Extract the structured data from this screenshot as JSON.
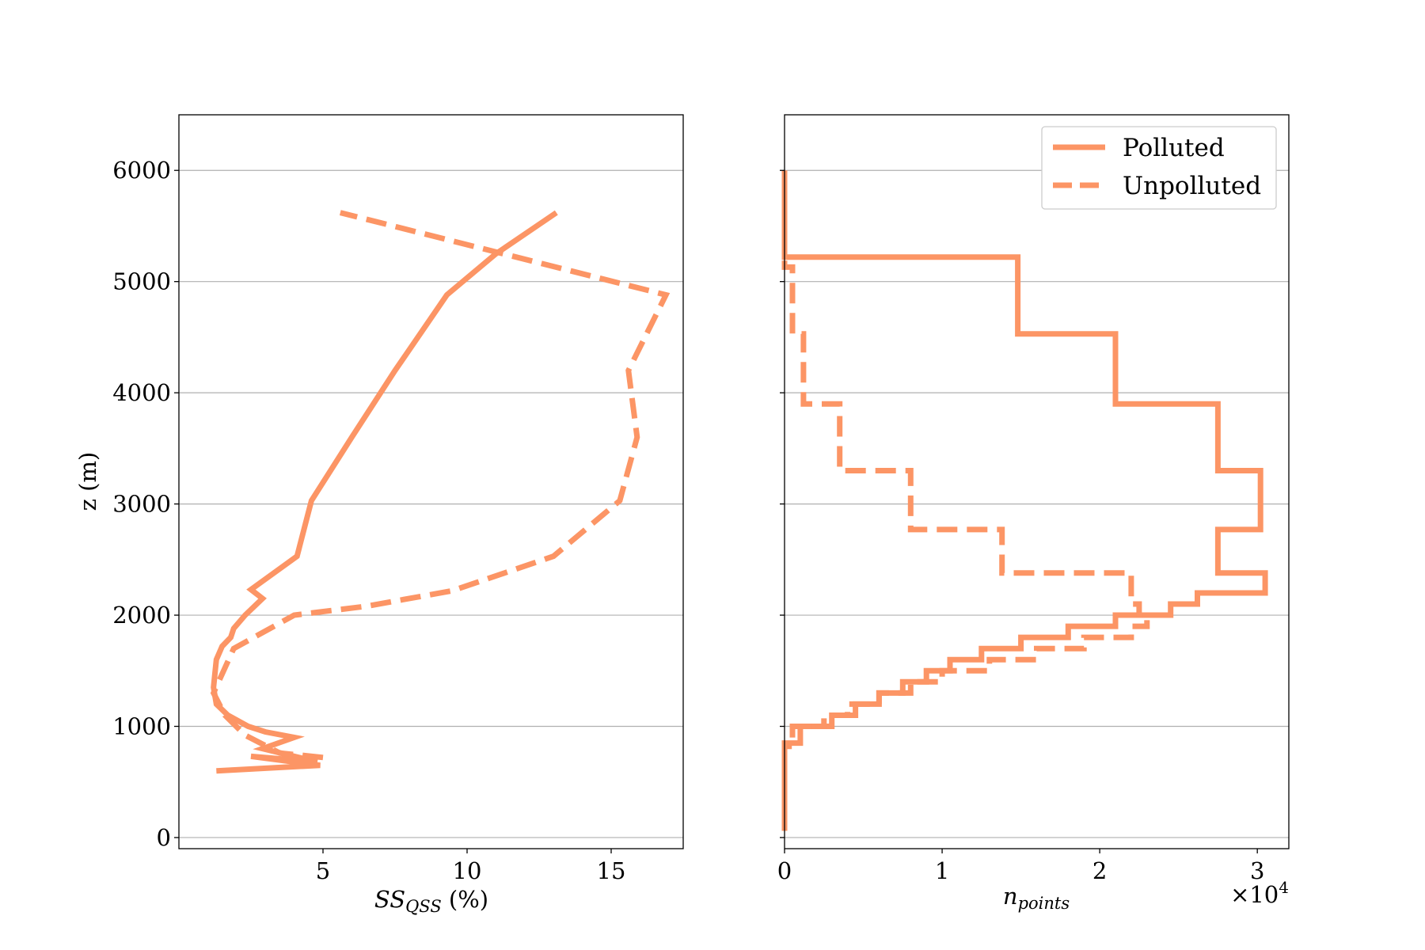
{
  "chart_data": [
    {
      "type": "line",
      "xlabel_main": "SS",
      "xlabel_sub": "QSS",
      "xlabel_suffix": " (%)",
      "ylabel": "z (m)",
      "xlim": [
        0,
        17.5
      ],
      "ylim": [
        -100,
        6500
      ],
      "xticks": [
        5,
        10,
        15
      ],
      "xtick_labels": [
        "5",
        "10",
        "15"
      ],
      "yticks": [
        0,
        1000,
        2000,
        3000,
        4000,
        5000,
        6000
      ],
      "ytick_labels": [
        "0",
        "1000",
        "2000",
        "3000",
        "4000",
        "5000",
        "6000"
      ],
      "grid": "horizontal",
      "series": [
        {
          "name": "Polluted",
          "style": "solid",
          "color": "#FC9565",
          "x": [
            1.3,
            4.9,
            2.5,
            4.8,
            2.9,
            4.0,
            3.0,
            2.4,
            1.7,
            1.3,
            1.2,
            1.3,
            1.5,
            1.8,
            1.9,
            2.3,
            2.9,
            2.5,
            4.1,
            4.6,
            6.0,
            7.5,
            9.3,
            11.0,
            13.1
          ],
          "y": [
            600,
            650,
            730,
            680,
            800,
            900,
            950,
            1000,
            1100,
            1200,
            1350,
            1600,
            1720,
            1800,
            1880,
            2000,
            2150,
            2230,
            2530,
            3030,
            3600,
            4200,
            4880,
            5250,
            5620
          ]
        },
        {
          "name": "Unpolluted",
          "style": "dashed",
          "color": "#FC9565",
          "x": [
            5.0,
            3.5,
            2.3,
            1.6,
            1.2,
            1.9,
            4.0,
            6.5,
            9.5,
            13.0,
            15.3,
            15.9,
            15.6,
            16.9,
            5.6
          ],
          "y": [
            720,
            760,
            920,
            1100,
            1300,
            1700,
            2000,
            2080,
            2220,
            2530,
            3030,
            3600,
            4200,
            4880,
            5620
          ]
        }
      ]
    },
    {
      "type": "histogram",
      "orientation": "horizontal",
      "xlabel_main": "n",
      "xlabel_sub": "points",
      "offset_text_base": "×10",
      "offset_text_exp": "4",
      "xlim": [
        0,
        3.2
      ],
      "ylim": [
        -100,
        6500
      ],
      "xticks": [
        0,
        1,
        2,
        3
      ],
      "xtick_labels": [
        "0",
        "1",
        "2",
        "3"
      ],
      "grid": "horizontal",
      "legend": {
        "placement": "top-right",
        "entries": [
          "Polluted",
          "Unpolluted"
        ]
      },
      "series": [
        {
          "name": "Polluted",
          "style": "solid",
          "color": "#FC9565",
          "bins": [
            [
              60,
              850,
              0.0
            ],
            [
              850,
              1000,
              0.1
            ],
            [
              1000,
              1100,
              0.3
            ],
            [
              1100,
              1200,
              0.45
            ],
            [
              1200,
              1300,
              0.6
            ],
            [
              1300,
              1400,
              0.75
            ],
            [
              1400,
              1500,
              0.9
            ],
            [
              1500,
              1600,
              1.05
            ],
            [
              1600,
              1700,
              1.25
            ],
            [
              1700,
              1800,
              1.5
            ],
            [
              1800,
              1900,
              1.8
            ],
            [
              1900,
              2000,
              2.1
            ],
            [
              2000,
              2100,
              2.45
            ],
            [
              2100,
              2200,
              2.62
            ],
            [
              2200,
              2380,
              3.05
            ],
            [
              2380,
              2770,
              2.75
            ],
            [
              2770,
              3300,
              3.02
            ],
            [
              3300,
              3900,
              2.75
            ],
            [
              3900,
              4530,
              2.1
            ],
            [
              4530,
              5220,
              1.48
            ],
            [
              5220,
              6000,
              0.0
            ]
          ]
        },
        {
          "name": "Unpolluted",
          "style": "dashed",
          "color": "#FC9565",
          "bins": [
            [
              700,
              820,
              0.0
            ],
            [
              820,
              1000,
              0.05
            ],
            [
              1000,
              1100,
              0.25
            ],
            [
              1100,
              1200,
              0.4
            ],
            [
              1200,
              1300,
              0.6
            ],
            [
              1300,
              1400,
              0.8
            ],
            [
              1400,
              1500,
              1.0
            ],
            [
              1500,
              1600,
              1.3
            ],
            [
              1600,
              1700,
              1.6
            ],
            [
              1700,
              1800,
              1.9
            ],
            [
              1800,
              1900,
              2.2
            ],
            [
              1900,
              2000,
              2.3
            ],
            [
              2000,
              2100,
              2.25
            ],
            [
              2100,
              2200,
              2.2
            ],
            [
              2200,
              2380,
              2.2
            ],
            [
              2380,
              2770,
              1.38
            ],
            [
              2770,
              3300,
              0.8
            ],
            [
              3300,
              3900,
              0.35
            ],
            [
              3900,
              4530,
              0.12
            ],
            [
              4530,
              5130,
              0.05
            ],
            [
              5130,
              5200,
              0.0
            ]
          ]
        }
      ]
    }
  ]
}
